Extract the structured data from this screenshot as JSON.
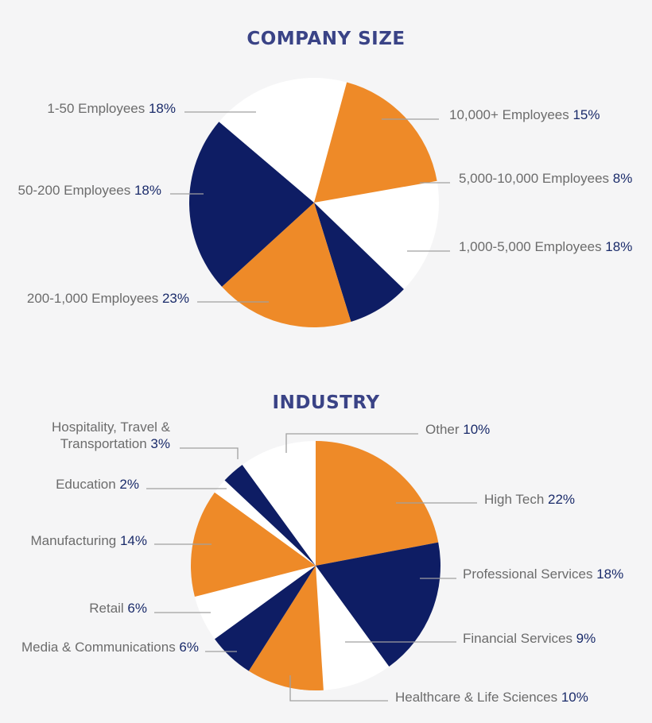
{
  "colors": {
    "orange": "#ee8a28",
    "navy": "#0e1d64",
    "white": "#ffffff",
    "title": "#3a4386",
    "label_text": "#6c6c6c",
    "percent_text": "#1a2b6a",
    "leader_line": "#a0a0a0",
    "background": "#f5f5f6"
  },
  "chart_data": [
    {
      "type": "pie",
      "title": "COMPANY SIZE",
      "slices": [
        {
          "label": "10,000+ Employees",
          "value": 15,
          "value_text": "15%",
          "color": "white"
        },
        {
          "label": "5,000-10,000 Employees",
          "value": 8,
          "value_text": "8%",
          "color": "navy"
        },
        {
          "label": "1,000-5,000 Employees",
          "value": 18,
          "value_text": "18%",
          "color": "orange"
        },
        {
          "label": "200-1,000 Employees",
          "value": 23,
          "value_text": "23%",
          "color": "navy"
        },
        {
          "label": "50-200 Employees",
          "value": 18,
          "value_text": "18%",
          "color": "white"
        },
        {
          "label": "1-50 Employees",
          "value": 18,
          "value_text": "18%",
          "color": "orange"
        }
      ]
    },
    {
      "type": "pie",
      "title": "INDUSTRY",
      "slices": [
        {
          "label": "High Tech",
          "value": 22,
          "value_text": "22%",
          "color": "orange"
        },
        {
          "label": "Professional Services",
          "value": 18,
          "value_text": "18%",
          "color": "navy"
        },
        {
          "label": "Financial Services",
          "value": 9,
          "value_text": "9%",
          "color": "white"
        },
        {
          "label": "Healthcare & Life Sciences",
          "value": 10,
          "value_text": "10%",
          "color": "orange"
        },
        {
          "label": "Media & Communications",
          "value": 6,
          "value_text": "6%",
          "color": "navy"
        },
        {
          "label": "Retail",
          "value": 6,
          "value_text": "6%",
          "color": "white"
        },
        {
          "label": "Manufacturing",
          "value": 14,
          "value_text": "14%",
          "color": "orange"
        },
        {
          "label": "Education",
          "value": 2,
          "value_text": "2%",
          "color": "white"
        },
        {
          "label": "Hospitality, Travel & Transportation",
          "label_lines": [
            "Hospitality, Travel &",
            "Transportation"
          ],
          "value": 3,
          "value_text": "3%",
          "color": "navy"
        },
        {
          "label": "Other",
          "value": 10,
          "value_text": "10%",
          "color": "white"
        }
      ]
    }
  ]
}
